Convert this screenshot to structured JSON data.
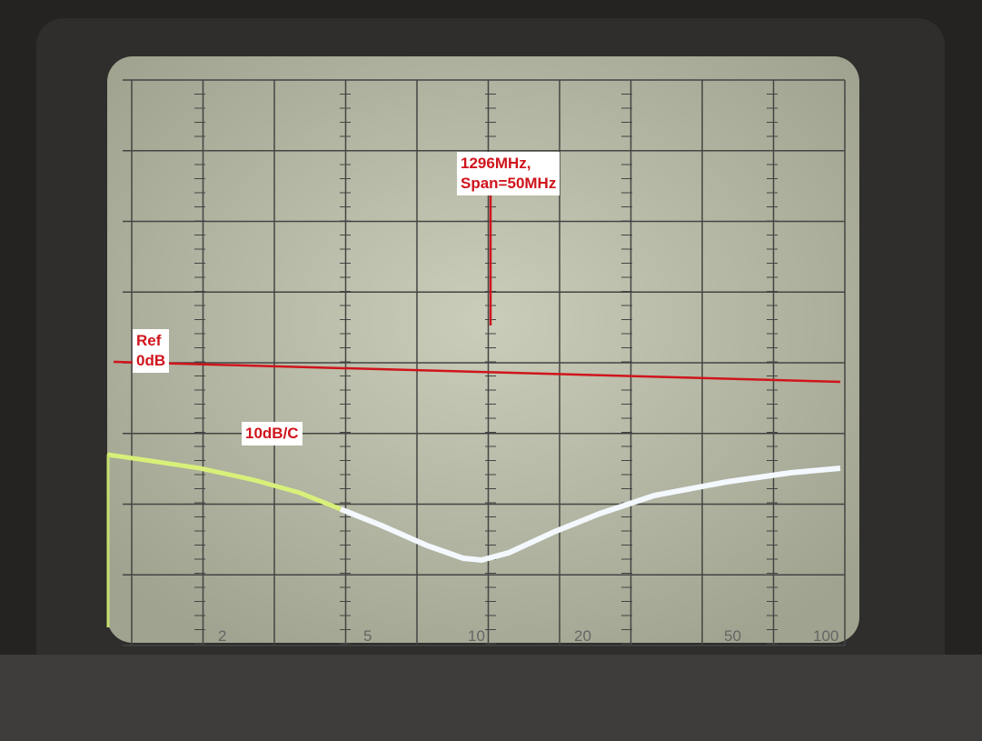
{
  "annotations": {
    "frequency": "1296MHz,",
    "span": "Span=50MHz",
    "ref": "Ref",
    "ref_level": "0dB",
    "scale": "10dB/C"
  },
  "graticule_labels": [
    "2",
    "5",
    "10",
    "20",
    "50",
    "100"
  ]
}
